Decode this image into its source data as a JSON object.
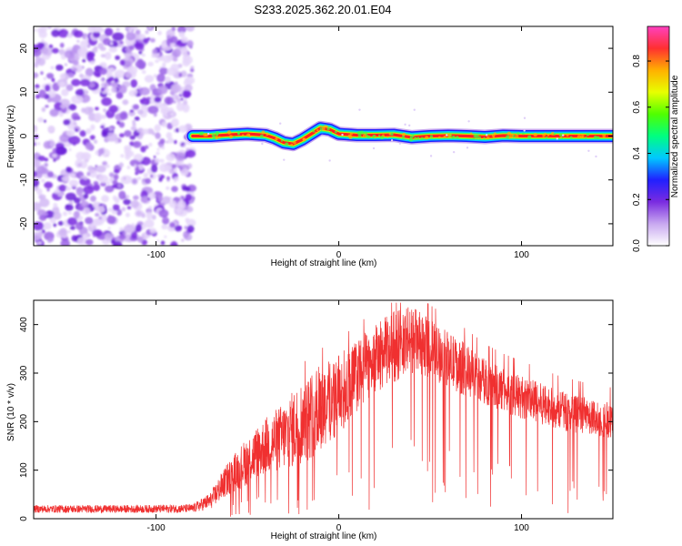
{
  "title": "S233.2025.362.20.01.E04",
  "chart_data": [
    {
      "type": "heatmap",
      "xlabel": "Height of straight line (km)",
      "ylabel": "Frequency (Hz)",
      "xlim": [
        -167,
        150
      ],
      "ylim": [
        -25,
        25
      ],
      "xticks": [
        -100,
        0,
        100
      ],
      "yticks": [
        -20,
        -10,
        0,
        10,
        20
      ],
      "xtick_labels": [
        "-100",
        "0",
        "100"
      ],
      "ytick_labels": [
        "-20",
        "-10",
        "0",
        "10",
        "20"
      ],
      "noise_region_x": [
        -167,
        -80
      ],
      "signal_track": {
        "x": [
          -80,
          -70,
          -60,
          -50,
          -40,
          -35,
          -30,
          -25,
          -20,
          -15,
          -10,
          -5,
          0,
          10,
          20,
          30,
          40,
          50,
          60,
          70,
          80,
          90,
          100,
          110,
          120,
          130,
          140,
          150
        ],
        "freq": [
          0.0,
          0.0,
          0.3,
          0.5,
          0.2,
          -0.5,
          -1.5,
          -1.8,
          -0.8,
          0.5,
          1.8,
          1.5,
          0.5,
          0.2,
          0.2,
          0.3,
          -0.3,
          0.0,
          0.1,
          0.0,
          -0.2,
          0.1,
          0.0,
          0.0,
          0.0,
          0.0,
          0.0,
          0.0
        ]
      },
      "colorbar": {
        "label": "Normalized spectral amplitude",
        "range": [
          0,
          0.95
        ],
        "ticks": [
          0.0,
          0.2,
          0.4,
          0.6,
          0.8
        ],
        "tick_labels": [
          "0.0",
          "0.2",
          "0.4",
          "0.6",
          "0.8"
        ],
        "colors": [
          "#ffffff",
          "#c8a8f0",
          "#7a2be0",
          "#2020ff",
          "#00c8ff",
          "#00ff80",
          "#50ff00",
          "#e8ff00",
          "#ffb000",
          "#ff3030",
          "#ff40c0"
        ]
      }
    },
    {
      "type": "line",
      "xlabel": "Height of straight line (km)",
      "ylabel": "SNR (10 * v/v)",
      "xlim": [
        -167,
        150
      ],
      "ylim": [
        0,
        450
      ],
      "xticks": [
        -100,
        0,
        100
      ],
      "yticks": [
        0,
        100,
        200,
        300,
        400
      ],
      "xtick_labels": [
        "-100",
        "0",
        "100"
      ],
      "ytick_labels": [
        "0",
        "100",
        "200",
        "300",
        "400"
      ],
      "series": [
        {
          "name": "SNR",
          "color": "#f03030",
          "envelope_x": [
            -167,
            -140,
            -110,
            -80,
            -70,
            -65,
            -60,
            -50,
            -40,
            -30,
            -20,
            -10,
            0,
            10,
            20,
            30,
            40,
            50,
            60,
            70,
            80,
            90,
            100,
            110,
            120,
            130,
            140,
            150
          ],
          "envelope_upper": [
            28,
            28,
            28,
            30,
            55,
            90,
            120,
            170,
            210,
            240,
            290,
            320,
            340,
            370,
            400,
            430,
            440,
            410,
            385,
            360,
            330,
            310,
            295,
            280,
            265,
            255,
            245,
            240
          ],
          "envelope_lower": [
            12,
            12,
            12,
            12,
            20,
            35,
            50,
            70,
            90,
            100,
            110,
            140,
            170,
            220,
            260,
            280,
            300,
            290,
            270,
            250,
            235,
            220,
            205,
            195,
            185,
            175,
            170,
            165
          ]
        }
      ]
    }
  ]
}
